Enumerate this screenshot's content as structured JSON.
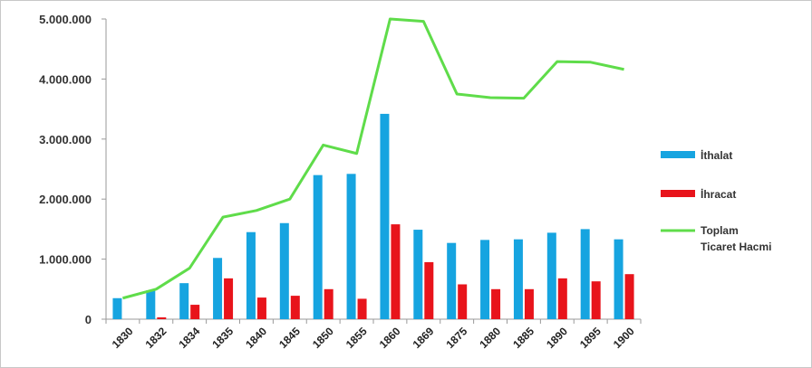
{
  "chart_data": {
    "type": "bar",
    "categories": [
      "1830",
      "1832",
      "1834",
      "1835",
      "1840",
      "1845",
      "1850",
      "1855",
      "1860",
      "1869",
      "1875",
      "1880",
      "1885",
      "1890",
      "1895",
      "1900"
    ],
    "series": [
      {
        "name": "İthalat",
        "kind": "bar",
        "color": "#16a4e0",
        "values": [
          350000,
          480000,
          600000,
          1020000,
          1450000,
          1600000,
          2400000,
          2420000,
          3420000,
          1490000,
          1270000,
          1320000,
          1330000,
          1440000,
          1500000,
          1330000
        ]
      },
      {
        "name": "İhracat",
        "kind": "bar",
        "color": "#e8141b",
        "values": [
          0,
          30000,
          240000,
          680000,
          360000,
          390000,
          500000,
          340000,
          1580000,
          950000,
          580000,
          500000,
          500000,
          680000,
          630000,
          750000
        ]
      },
      {
        "name_lines": [
          "Toplam",
          "Ticaret Hacmi"
        ],
        "kind": "line",
        "color": "#5fdc4a",
        "values": [
          350000,
          500000,
          850000,
          1700000,
          1810000,
          2000000,
          2900000,
          2760000,
          5000000,
          4960000,
          3750000,
          3690000,
          3680000,
          4290000,
          4280000,
          4160000
        ]
      }
    ],
    "yticks": [
      "0",
      "1.000.000",
      "2.000.000",
      "3.000.000",
      "4.000.000",
      "5.000.000"
    ],
    "ylim": [
      0,
      5000000
    ],
    "grid": false,
    "legend_position": "right"
  }
}
